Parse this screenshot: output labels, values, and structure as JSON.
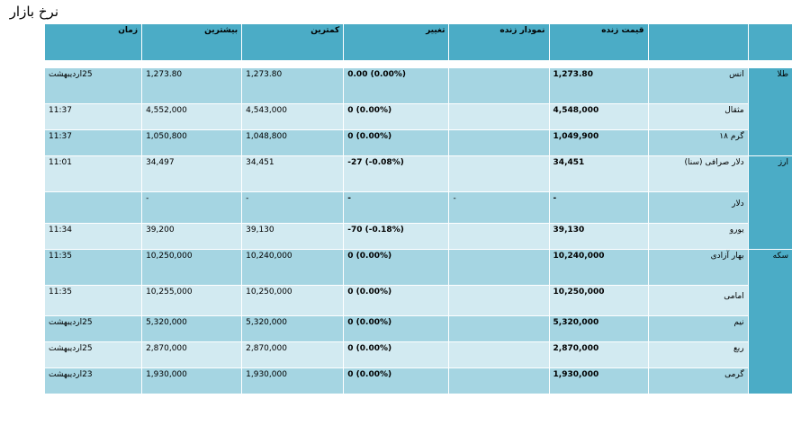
{
  "title": "نرخ بازار",
  "headers": {
    "category": "",
    "name": "",
    "price": "قیمت زنده",
    "chart": "نمودار زنده",
    "change": "تغییر",
    "low": "کمترین",
    "high": "بیشترین",
    "time": "زمان"
  },
  "categories": {
    "gold": "طلا",
    "currency": "ارز",
    "coin": "سکه"
  },
  "rows": [
    {
      "name": "انس",
      "price": "1,273.80",
      "chart": "",
      "change": "0.00 (0.00%)",
      "low": "1,273.80",
      "high": "1,273.80",
      "time": "25اردیبهشت"
    },
    {
      "name": "مثقال",
      "price": "4,548,000",
      "chart": "",
      "change": "0 (0.00%)",
      "low": "4,543,000",
      "high": "4,552,000",
      "time": "11:37"
    },
    {
      "name": "گرم ۱۸",
      "price": "1,049,900",
      "chart": "",
      "change": "0 (0.00%)",
      "low": "1,048,800",
      "high": "1,050,800",
      "time": "11:37"
    },
    {
      "name": "دلار صرافی (سنا)",
      "price": "34,451",
      "chart": "",
      "change": "-27 (-0.08%)",
      "low": "34,451",
      "high": "34,497",
      "time": "11:01"
    },
    {
      "name": "دلار",
      "price": "-",
      "chart": "-",
      "change": "-",
      "low": "-",
      "high": "-",
      "time": ""
    },
    {
      "name": "یورو",
      "price": "39,130",
      "chart": "",
      "change": "-70 (-0.18%)",
      "low": "39,130",
      "high": "39,200",
      "time": "11:34"
    },
    {
      "name": "بهار آزادی",
      "price": "10,240,000",
      "chart": "",
      "change": "0 (0.00%)",
      "low": "10,240,000",
      "high": "10,250,000",
      "time": "11:35"
    },
    {
      "name": "امامی",
      "price": "10,250,000",
      "chart": "",
      "change": "0 (0.00%)",
      "low": "10,250,000",
      "high": "10,255,000",
      "time": "11:35"
    },
    {
      "name": "نیم",
      "price": "5,320,000",
      "chart": "",
      "change": "0 (0.00%)",
      "low": "5,320,000",
      "high": "5,320,000",
      "time": "25اردیبهشت"
    },
    {
      "name": "ربع",
      "price": "2,870,000",
      "chart": "",
      "change": "0 (0.00%)",
      "low": "2,870,000",
      "high": "2,870,000",
      "time": "25اردیبهشت"
    },
    {
      "name": "گرمی",
      "price": "1,930,000",
      "chart": "",
      "change": "0 (0.00%)",
      "low": "1,930,000",
      "high": "1,930,000",
      "time": "23اردیبهشت"
    }
  ],
  "colors": {
    "header": "#4bacc6",
    "row_dark": "#a5d5e2",
    "row_light": "#d2eaf1"
  }
}
